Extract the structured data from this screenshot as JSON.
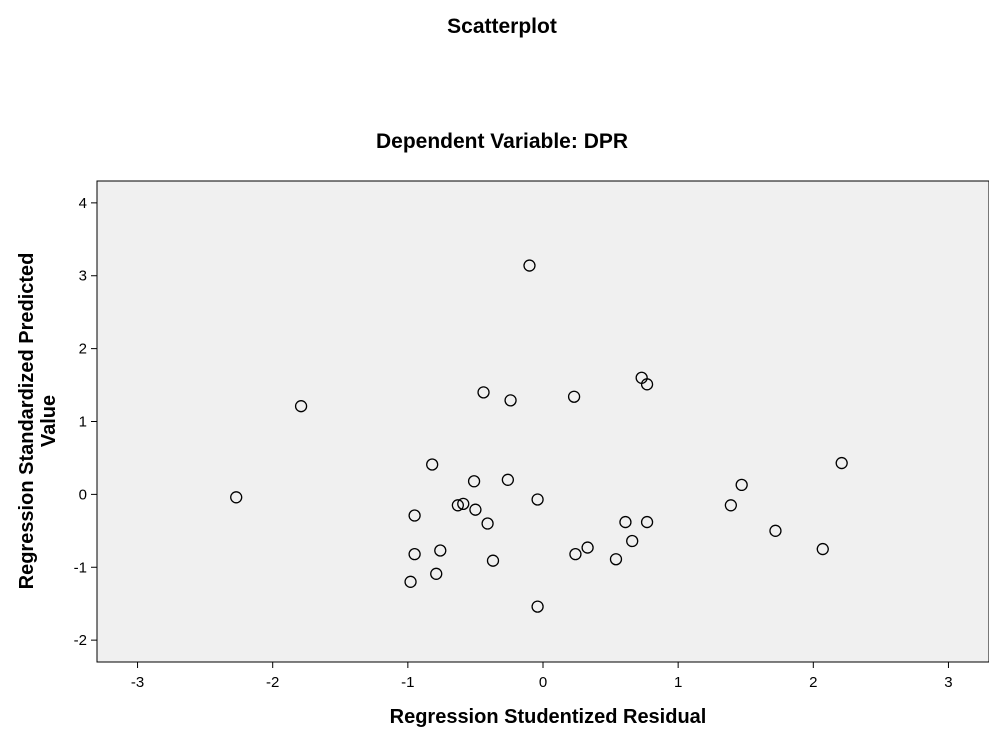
{
  "chart_data": {
    "type": "scatter",
    "title": "Scatterplot",
    "subtitle": "Dependent Variable: DPR",
    "xlabel": "Regression Studentized Residual",
    "ylabel_lines": [
      "Regression Standardized Predicted",
      "Value"
    ],
    "xlim": [
      -3.3,
      3.3
    ],
    "ylim": [
      -2.3,
      4.3
    ],
    "xticks": [
      -3,
      -2,
      -1,
      0,
      1,
      2,
      3
    ],
    "yticks": [
      -2,
      -1,
      0,
      1,
      2,
      3,
      4
    ],
    "xtick_labels": [
      "-3",
      "-2",
      "-1",
      "0",
      "1",
      "2",
      "3"
    ],
    "ytick_labels": [
      "-2",
      "-1",
      "0",
      "1",
      "2",
      "3",
      "4"
    ],
    "grid": false,
    "plot_background": "#f0f0f0",
    "marker_color": "#000000",
    "series": [
      {
        "points": [
          [
            -2.27,
            -0.04
          ],
          [
            -1.79,
            1.21
          ],
          [
            -0.98,
            -1.2
          ],
          [
            -0.95,
            -0.82
          ],
          [
            -0.95,
            -0.29
          ],
          [
            -0.82,
            0.41
          ],
          [
            -0.79,
            -1.09
          ],
          [
            -0.76,
            -0.77
          ],
          [
            -0.63,
            -0.15
          ],
          [
            -0.59,
            -0.13
          ],
          [
            -0.51,
            0.18
          ],
          [
            -0.5,
            -0.21
          ],
          [
            -0.44,
            1.4
          ],
          [
            -0.41,
            -0.4
          ],
          [
            -0.37,
            -0.91
          ],
          [
            -0.26,
            0.2
          ],
          [
            -0.24,
            1.29
          ],
          [
            -0.1,
            3.14
          ],
          [
            -0.04,
            -0.07
          ],
          [
            -0.04,
            -1.54
          ],
          [
            0.23,
            1.34
          ],
          [
            0.24,
            -0.82
          ],
          [
            0.33,
            -0.73
          ],
          [
            0.54,
            -0.89
          ],
          [
            0.61,
            -0.38
          ],
          [
            0.66,
            -0.64
          ],
          [
            0.73,
            1.6
          ],
          [
            0.77,
            1.51
          ],
          [
            0.77,
            -0.38
          ],
          [
            1.39,
            -0.15
          ],
          [
            1.47,
            0.13
          ],
          [
            1.72,
            -0.5
          ],
          [
            2.07,
            -0.75
          ],
          [
            2.21,
            0.43
          ]
        ]
      }
    ]
  }
}
